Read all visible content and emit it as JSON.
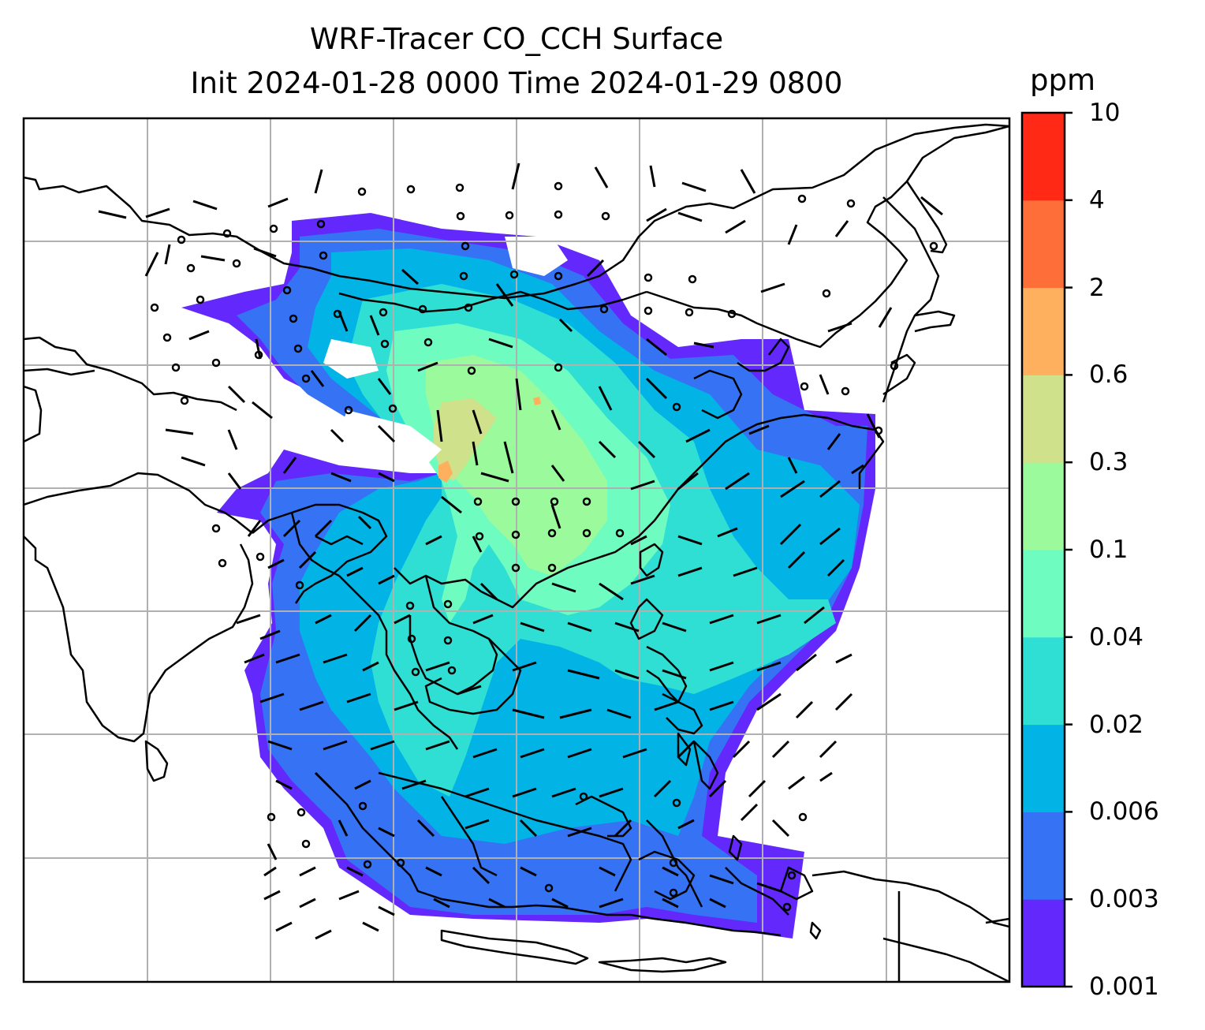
{
  "title": {
    "line1": "WRF-Tracer CO_CCH Surface",
    "line2": "Init 2024-01-28 0000 Time 2024-01-29 0800"
  },
  "colorbar": {
    "unit": "ppm",
    "levels": [
      "0.001",
      "0.003",
      "0.006",
      "0.02",
      "0.04",
      "0.1",
      "0.3",
      "0.6",
      "2",
      "4",
      "10"
    ],
    "colors": [
      "#6328fb",
      "#3673f4",
      "#02b4e6",
      "#2fdfd4",
      "#6efcc0",
      "#9afa9c",
      "#cfe18a",
      "#feb05e",
      "#fe6e38",
      "#ff2916"
    ]
  },
  "map": {
    "gridlines": true,
    "coastlines": true,
    "overlay": "wind-barbs"
  }
}
